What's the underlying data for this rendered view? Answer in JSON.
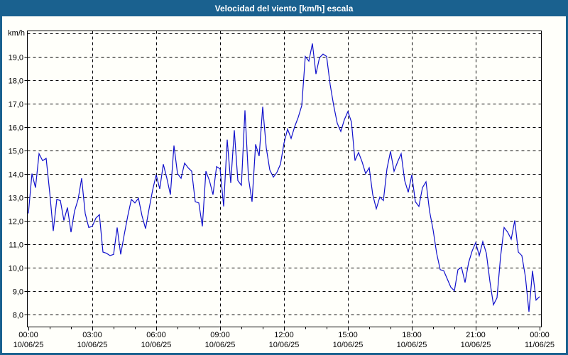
{
  "window": {
    "title": "Velocidad del viento [km/h] escala"
  },
  "colors": {
    "titlebar_bg": "#1A618F",
    "window_border": "#1A618F",
    "plot_background": "#fffffa",
    "line_color": "#1010CC",
    "grid_color": "#000000",
    "axis_color": "#000000",
    "tick_label_color": "#000000",
    "title_text_color": "#ffffff"
  },
  "chart_data": {
    "type": "line",
    "title": "Velocidad del viento [km/h] escala",
    "y_unit_label": "km/h",
    "grid": {
      "style": "dashed",
      "horizontal": true,
      "vertical": true
    },
    "legend": "none",
    "y_axis": {
      "tick_min": 8.0,
      "tick_step": 1.0,
      "tick_labels": [
        "8,0",
        "9,0",
        "10,0",
        "11,0",
        "12,0",
        "13,0",
        "14,0",
        "15,0",
        "16,0",
        "17,0",
        "18,0",
        "19,0"
      ],
      "extra_gridline_value": 20.0,
      "display_min": 7.5,
      "display_max": 20.1
    },
    "x_axis": {
      "span_hours": 24,
      "major_tick_interval_hours": 3,
      "minor_tick_interval_hours": 1,
      "tick_labels": [
        {
          "time": "00:00",
          "date": "10/06/25"
        },
        {
          "time": "03:00",
          "date": "10/06/25"
        },
        {
          "time": "06:00",
          "date": "10/06/25"
        },
        {
          "time": "09:00",
          "date": "10/06/25"
        },
        {
          "time": "12:00",
          "date": "10/06/25"
        },
        {
          "time": "15:00",
          "date": "10/06/25"
        },
        {
          "time": "18:00",
          "date": "10/06/25"
        },
        {
          "time": "21:00",
          "date": "10/06/25"
        },
        {
          "time": "00:00",
          "date": "11/06/25"
        }
      ]
    },
    "series": [
      {
        "name": "Velocidad del viento",
        "unit": "km/h",
        "start_minute": 0,
        "step_minutes": 10,
        "values": [
          12.3,
          14.0,
          13.4,
          14.85,
          14.55,
          14.65,
          13.2,
          11.55,
          12.9,
          12.85,
          12.0,
          12.55,
          11.5,
          12.4,
          12.9,
          13.8,
          12.3,
          11.7,
          11.75,
          12.1,
          12.25,
          10.65,
          10.6,
          10.5,
          10.55,
          11.7,
          10.55,
          11.4,
          12.2,
          12.9,
          12.75,
          12.95,
          12.2,
          11.65,
          12.5,
          13.3,
          13.95,
          13.35,
          14.4,
          13.8,
          13.1,
          15.2,
          14.0,
          13.8,
          14.45,
          14.25,
          14.1,
          12.8,
          12.75,
          11.75,
          14.1,
          13.7,
          13.1,
          14.3,
          14.2,
          12.6,
          15.45,
          13.6,
          15.85,
          13.7,
          13.5,
          16.7,
          13.8,
          12.8,
          15.25,
          14.75,
          16.85,
          15.1,
          14.15,
          13.85,
          14.05,
          14.4,
          15.3,
          15.9,
          15.5,
          16.0,
          16.4,
          16.9,
          19.0,
          18.8,
          19.55,
          18.25,
          18.95,
          19.1,
          19.0,
          17.8,
          16.9,
          16.15,
          15.8,
          16.3,
          16.65,
          16.2,
          14.55,
          14.9,
          14.5,
          14.0,
          14.25,
          13.1,
          12.5,
          13.0,
          12.85,
          14.2,
          14.95,
          14.1,
          14.5,
          14.85,
          13.7,
          13.2,
          13.95,
          12.8,
          12.6,
          13.4,
          13.65,
          12.4,
          11.6,
          10.6,
          9.9,
          9.85,
          9.5,
          9.15,
          9.0,
          9.9,
          10.0,
          9.35,
          10.2,
          10.7,
          11.05,
          10.5,
          11.1,
          10.6,
          9.4,
          8.4,
          8.7,
          10.45,
          11.7,
          11.5,
          11.2,
          12.0,
          10.65,
          10.5,
          9.6,
          8.1,
          9.85,
          8.6,
          8.75
        ]
      }
    ]
  }
}
